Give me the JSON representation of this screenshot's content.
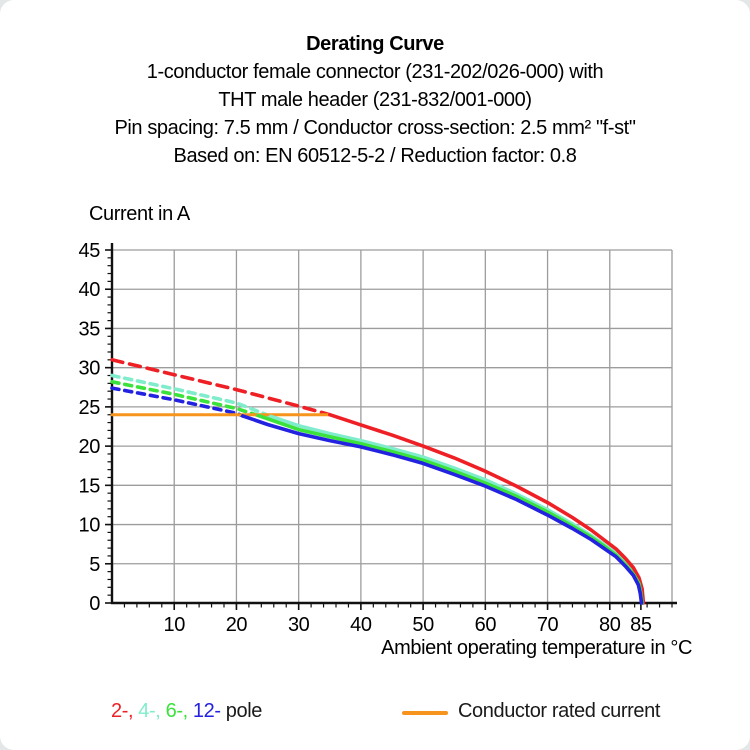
{
  "header": {
    "title": "Derating Curve",
    "subtitle_lines": [
      "1-conductor female connector (231-202/026-000) with",
      "THT male header (231-832/001-000)",
      "Pin spacing: 7.5 mm / Conductor cross-section: 2.5 mm² \"f-st\"",
      "Based on: EN 60512-5-2 / Reduction factor: 0.8"
    ]
  },
  "axes": {
    "y_label": "Current in A",
    "x_label": "Ambient operating temperature in °C",
    "x_ticks": [
      10,
      20,
      30,
      40,
      50,
      60,
      70,
      80,
      85
    ],
    "y_ticks": [
      0,
      5,
      10,
      15,
      20,
      25,
      30,
      35,
      40,
      45
    ],
    "grid_color": "#9c9c9c",
    "axis_color": "#111111"
  },
  "chart_data": {
    "type": "line",
    "title": "Derating Curve",
    "xlabel": "Ambient operating temperature in °C",
    "ylabel": "Current in A",
    "xlim": [
      0,
      90
    ],
    "ylim": [
      0,
      45
    ],
    "grid": true,
    "x_grid_step": 10,
    "y_grid_step": 5,
    "legend_position": "bottom",
    "series": [
      {
        "name": "2-pole",
        "color": "#ee2025",
        "dash": "11 7",
        "dashed_points": [
          [
            0,
            31
          ],
          [
            10,
            29.1
          ],
          [
            20,
            27.2
          ],
          [
            30,
            25.1
          ],
          [
            35,
            24
          ]
        ],
        "solid_points": [
          [
            35,
            24
          ],
          [
            40,
            22.7
          ],
          [
            45,
            21.4
          ],
          [
            50,
            20.0
          ],
          [
            55,
            18.5
          ],
          [
            60,
            16.8
          ],
          [
            65,
            14.9
          ],
          [
            70,
            12.8
          ],
          [
            74,
            10.9
          ],
          [
            77,
            9.3
          ],
          [
            79,
            8.1
          ],
          [
            81,
            6.9
          ],
          [
            82.5,
            5.7
          ],
          [
            83.8,
            4.5
          ],
          [
            84.7,
            3.2
          ],
          [
            85.2,
            1.8
          ],
          [
            85.4,
            0
          ]
        ]
      },
      {
        "name": "4-pole",
        "color": "#7feccb",
        "dash": "7 6",
        "dashed_points": [
          [
            0,
            29
          ],
          [
            10,
            27.3
          ],
          [
            20,
            25.5
          ],
          [
            25.5,
            23.8
          ]
        ],
        "solid_points": [
          [
            25.5,
            23.8
          ],
          [
            30,
            22.6
          ],
          [
            35,
            21.6
          ],
          [
            40,
            20.7
          ],
          [
            45,
            19.7
          ],
          [
            50,
            18.6
          ],
          [
            55,
            17.2
          ],
          [
            60,
            15.7
          ],
          [
            65,
            13.9
          ],
          [
            70,
            11.9
          ],
          [
            74,
            10.1
          ],
          [
            77,
            8.6
          ],
          [
            79,
            7.5
          ],
          [
            81,
            6.3
          ],
          [
            82.5,
            5.1
          ],
          [
            83.8,
            3.9
          ],
          [
            84.7,
            2.7
          ],
          [
            85.1,
            1.5
          ],
          [
            85.3,
            0
          ]
        ]
      },
      {
        "name": "6-pole",
        "color": "#3ce23c",
        "dash": "7 6",
        "dashed_points": [
          [
            0,
            28.2
          ],
          [
            10,
            26.6
          ],
          [
            20,
            24.8
          ],
          [
            23.5,
            23.9
          ]
        ],
        "solid_points": [
          [
            23.5,
            23.9
          ],
          [
            30,
            22.1
          ],
          [
            35,
            21.2
          ],
          [
            40,
            20.3
          ],
          [
            45,
            19.3
          ],
          [
            50,
            18.2
          ],
          [
            55,
            16.8
          ],
          [
            60,
            15.3
          ],
          [
            65,
            13.6
          ],
          [
            70,
            11.6
          ],
          [
            74,
            9.8
          ],
          [
            77,
            8.4
          ],
          [
            79,
            7.3
          ],
          [
            81,
            6.1
          ],
          [
            82.5,
            4.9
          ],
          [
            83.8,
            3.7
          ],
          [
            84.7,
            2.5
          ],
          [
            85.0,
            1.3
          ],
          [
            85.2,
            0
          ]
        ]
      },
      {
        "name": "12-pole",
        "color": "#2222e0",
        "dash": "7 6",
        "dashed_points": [
          [
            0,
            27.4
          ],
          [
            10,
            25.9
          ],
          [
            20,
            24.2
          ],
          [
            21,
            23.85
          ]
        ],
        "solid_points": [
          [
            21,
            23.85
          ],
          [
            25,
            22.75
          ],
          [
            30,
            21.6
          ],
          [
            35,
            20.7
          ],
          [
            40,
            19.9
          ],
          [
            45,
            18.9
          ],
          [
            50,
            17.8
          ],
          [
            55,
            16.4
          ],
          [
            60,
            14.9
          ],
          [
            65,
            13.2
          ],
          [
            70,
            11.2
          ],
          [
            74,
            9.5
          ],
          [
            77,
            8.1
          ],
          [
            79,
            7.0
          ],
          [
            81,
            5.9
          ],
          [
            82.5,
            4.7
          ],
          [
            83.8,
            3.5
          ],
          [
            84.6,
            2.3
          ],
          [
            84.9,
            1.2
          ],
          [
            85.1,
            0
          ]
        ]
      },
      {
        "name": "Conductor rated current",
        "color": "#f7941d",
        "dash": null,
        "dashed_points": [],
        "solid_points": [
          [
            0,
            24
          ],
          [
            35,
            24
          ]
        ]
      }
    ]
  },
  "legend": {
    "poles": [
      {
        "label": "2-,",
        "color": "#ee2025"
      },
      {
        "label": "4-,",
        "color": "#7feccb"
      },
      {
        "label": "6-,",
        "color": "#3ce23c"
      },
      {
        "label": "12-",
        "color": "#2222e0"
      }
    ],
    "poles_suffix": "pole",
    "rated_label": "Conductor rated current",
    "rated_color": "#f7941d"
  }
}
